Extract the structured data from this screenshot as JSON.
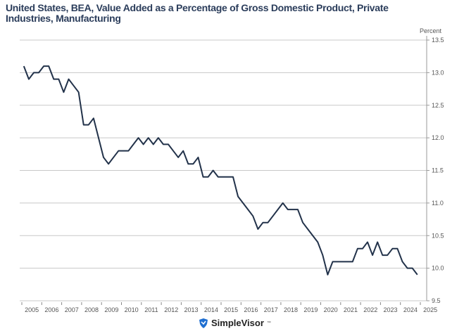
{
  "chart_data": {
    "type": "line",
    "title": "United States, BEA, Value Added as a Percentage of Gross Domestic Product, Private Industries, Manufacturing",
    "ylabel": "Percent",
    "xlabel": "",
    "frequency": "quarterly",
    "start": "2005-Q1",
    "end": "2024-Q4",
    "ylim": [
      9.5,
      13.5
    ],
    "yticks": [
      "9.5",
      "10.0",
      "10.5",
      "11.0",
      "11.5",
      "12.0",
      "12.5",
      "13.0",
      "13.5"
    ],
    "xticks": [
      "2005",
      "2006",
      "2007",
      "2008",
      "2009",
      "2010",
      "2011",
      "2012",
      "2013",
      "2014",
      "2015",
      "2016",
      "2017",
      "2018",
      "2019",
      "2020",
      "2021",
      "2022",
      "2023",
      "2024",
      "2025"
    ],
    "xlim": [
      2005,
      2025
    ],
    "grid": true,
    "y_axis_side": "right",
    "line_color": "#22324a",
    "values": [
      13.1,
      12.9,
      13.0,
      13.0,
      13.1,
      13.1,
      12.9,
      12.9,
      12.7,
      12.9,
      12.8,
      12.7,
      12.2,
      12.2,
      12.3,
      12.0,
      11.7,
      11.6,
      11.7,
      11.8,
      11.8,
      11.8,
      11.9,
      12.0,
      11.9,
      12.0,
      11.9,
      12.0,
      11.9,
      11.9,
      11.8,
      11.7,
      11.8,
      11.6,
      11.6,
      11.7,
      11.4,
      11.4,
      11.5,
      11.4,
      11.4,
      11.4,
      11.4,
      11.1,
      11.0,
      10.9,
      10.8,
      10.6,
      10.7,
      10.7,
      10.8,
      10.9,
      11.0,
      10.9,
      10.9,
      10.9,
      10.7,
      10.6,
      10.5,
      10.4,
      10.2,
      9.9,
      10.1,
      10.1,
      10.1,
      10.1,
      10.1,
      10.3,
      10.3,
      10.4,
      10.2,
      10.4,
      10.2,
      10.2,
      10.3,
      10.3,
      10.1,
      10.0,
      10.0,
      9.9
    ]
  },
  "logo": {
    "text": "SimpleVisor",
    "tm": "™",
    "color": "#1f6fd1"
  }
}
